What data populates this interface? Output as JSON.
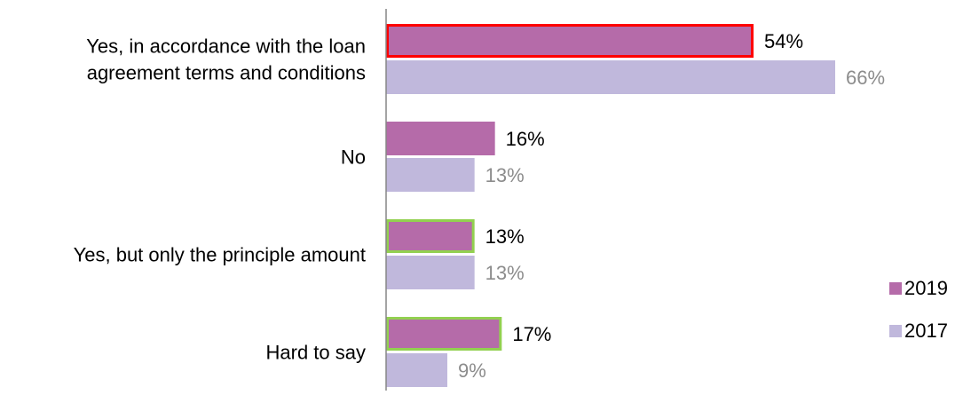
{
  "chart_data": {
    "type": "bar",
    "orientation": "horizontal",
    "categories": [
      [
        "Yes, in accordance with the loan",
        "agreement terms and conditions"
      ],
      [
        "No"
      ],
      [
        "Yes, but only the principle amount"
      ],
      [
        "Hard to say"
      ]
    ],
    "series": [
      {
        "name": "2019",
        "values": [
          54,
          16,
          13,
          17
        ],
        "labels": [
          "54%",
          "16%",
          "13%",
          "17%"
        ],
        "color": "#b56ba9",
        "label_color": "#000000",
        "outlines": [
          "#ff0000",
          null,
          "#92d050",
          "#92d050"
        ]
      },
      {
        "name": "2017",
        "values": [
          66,
          13,
          13,
          9
        ],
        "labels": [
          "66%",
          "13%",
          "13%",
          "9%"
        ],
        "color": "#c0b8dc",
        "label_color": "#8c8c8c",
        "outlines": [
          null,
          null,
          null,
          null
        ]
      }
    ],
    "xlim": [
      0,
      66
    ],
    "grid": false,
    "legend_position": "right"
  }
}
